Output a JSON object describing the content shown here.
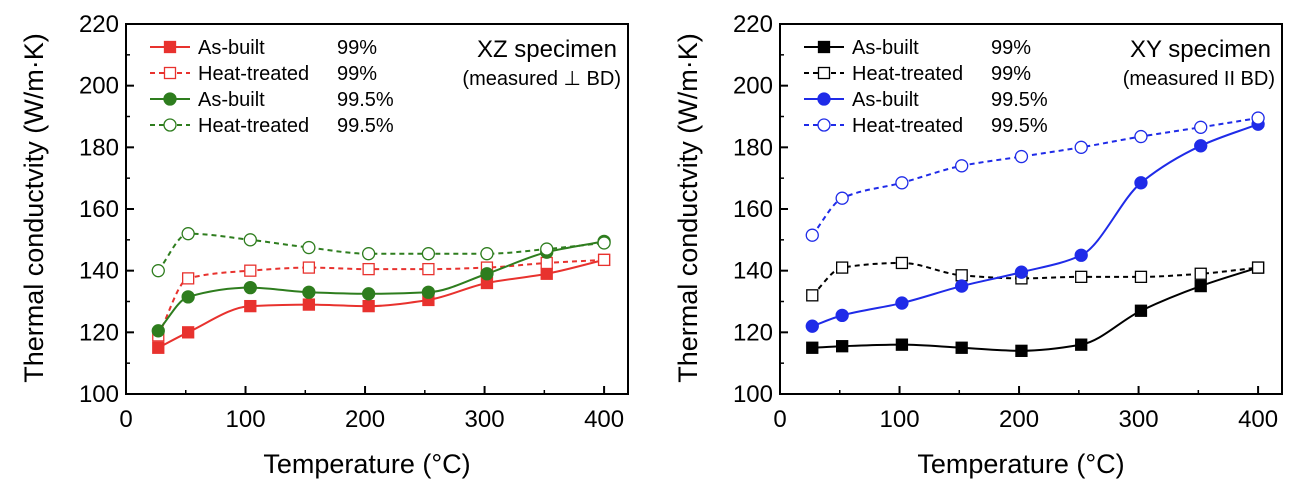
{
  "chart_data": [
    {
      "type": "line",
      "title": "",
      "xlabel": "Temperature (°C)",
      "ylabel": "Thermal conductvity (W/m·K)",
      "xlim": [
        0,
        420
      ],
      "ylim": [
        100,
        220
      ],
      "xticks": [
        0,
        100,
        200,
        300,
        400
      ],
      "yticks": [
        100,
        120,
        140,
        160,
        180,
        200,
        220
      ],
      "grid": false,
      "legend_position": "top-left",
      "annotation": {
        "title": "XZ specimen",
        "subtitle": "(measured ⊥ BD)"
      },
      "series": [
        {
          "name": "As-built",
          "density": "99%",
          "color": "#e8322e",
          "marker": "square",
          "filled": true,
          "dashed": false,
          "x": [
            27,
            52,
            104,
            153,
            203,
            253,
            302,
            352,
            400
          ],
          "y": [
            115,
            120,
            128.5,
            129,
            128.5,
            130.5,
            136,
            139,
            143.5
          ]
        },
        {
          "name": "Heat-treated",
          "density": "99%",
          "color": "#e8322e",
          "marker": "square",
          "filled": false,
          "dashed": true,
          "x": [
            27,
            52,
            104,
            153,
            203,
            253,
            302,
            352,
            400
          ],
          "y": [
            119,
            137.5,
            140,
            141,
            140.5,
            140.5,
            141,
            142.5,
            143.5
          ]
        },
        {
          "name": "As-built",
          "density": "99.5%",
          "color": "#2e7d1e",
          "marker": "circle",
          "filled": true,
          "dashed": false,
          "x": [
            27,
            52,
            104,
            153,
            203,
            253,
            302,
            352,
            400
          ],
          "y": [
            120.5,
            131.5,
            134.5,
            133,
            132.5,
            133,
            139,
            146,
            149.5
          ]
        },
        {
          "name": "Heat-treated",
          "density": "99.5%",
          "color": "#2e7d1e",
          "marker": "circle",
          "filled": false,
          "dashed": true,
          "x": [
            27,
            52,
            104,
            153,
            203,
            253,
            302,
            352,
            400
          ],
          "y": [
            140,
            152,
            150,
            147.5,
            145.5,
            145.5,
            145.5,
            147,
            149
          ]
        }
      ]
    },
    {
      "type": "line",
      "title": "",
      "xlabel": "Temperature (°C)",
      "ylabel": "Thermal conductvity (W/m·K)",
      "xlim": [
        0,
        420
      ],
      "ylim": [
        100,
        220
      ],
      "xticks": [
        0,
        100,
        200,
        300,
        400
      ],
      "yticks": [
        100,
        120,
        140,
        160,
        180,
        200,
        220
      ],
      "grid": false,
      "legend_position": "top-left",
      "annotation": {
        "title": "XY specimen",
        "subtitle": "(measured II BD)"
      },
      "series": [
        {
          "name": "As-built",
          "density": "99%",
          "color": "#000000",
          "marker": "square",
          "filled": true,
          "dashed": false,
          "x": [
            27,
            52,
            102,
            152,
            202,
            252,
            302,
            352,
            400
          ],
          "y": [
            115,
            115.5,
            116,
            115,
            114,
            116,
            127,
            135,
            141
          ]
        },
        {
          "name": "Heat-treated",
          "density": "99%",
          "color": "#000000",
          "marker": "square",
          "filled": false,
          "dashed": true,
          "x": [
            27,
            52,
            102,
            152,
            202,
            252,
            302,
            352,
            400
          ],
          "y": [
            132,
            141,
            142.5,
            138.5,
            137.5,
            138,
            138,
            139,
            141
          ]
        },
        {
          "name": "As-built",
          "density": "99.5%",
          "color": "#1f2be8",
          "marker": "circle",
          "filled": true,
          "dashed": false,
          "x": [
            27,
            52,
            102,
            152,
            202,
            252,
            302,
            352,
            400
          ],
          "y": [
            122,
            125.5,
            129.5,
            135,
            139.5,
            145,
            168.5,
            180.5,
            187.5
          ]
        },
        {
          "name": "Heat-treated",
          "density": "99.5%",
          "color": "#1f2be8",
          "marker": "circle",
          "filled": false,
          "dashed": true,
          "x": [
            27,
            52,
            102,
            152,
            202,
            252,
            302,
            352,
            400
          ],
          "y": [
            151.5,
            163.5,
            168.5,
            174,
            177,
            180,
            183.5,
            186.5,
            189.5
          ]
        }
      ]
    }
  ]
}
